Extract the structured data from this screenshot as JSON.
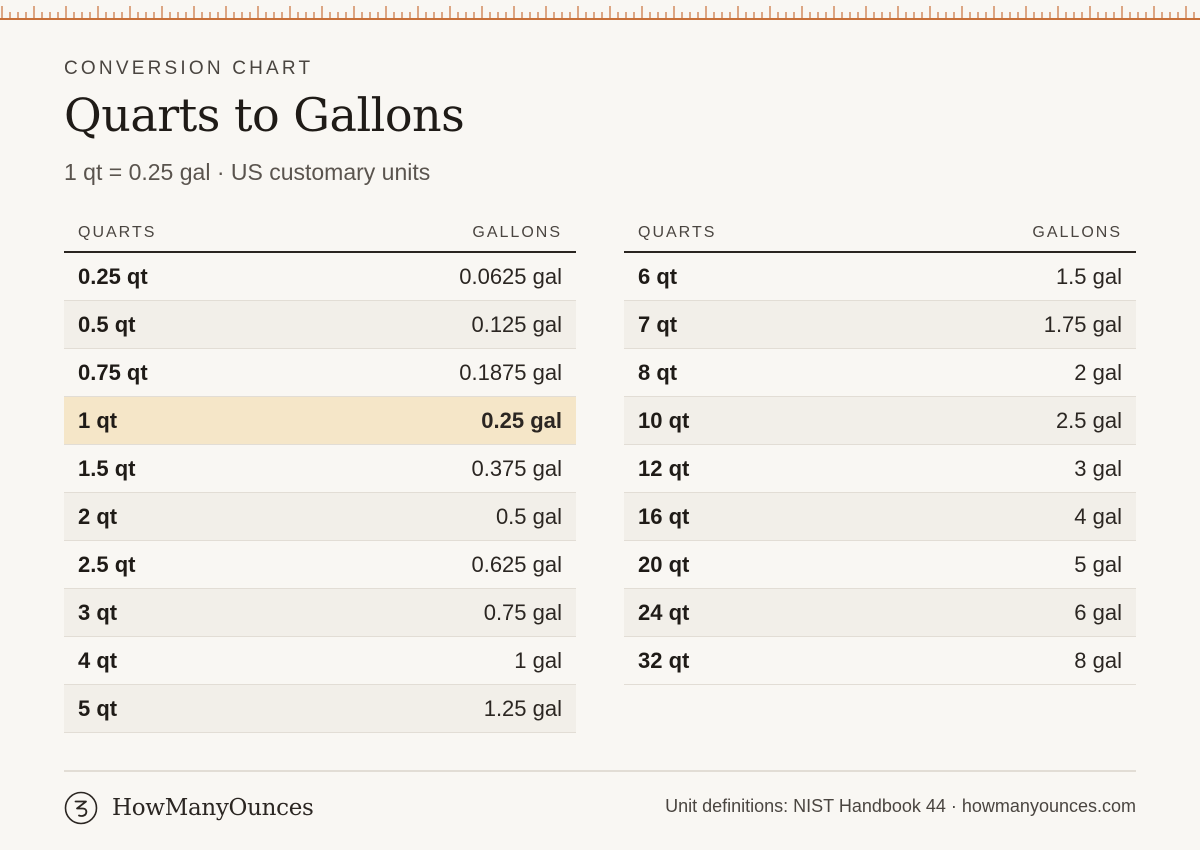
{
  "header": {
    "eyebrow": "CONVERSION CHART",
    "title": "Quarts to Gallons",
    "subtitle": "1 qt = 0.25 gal · US customary units"
  },
  "accent": {
    "ruler": "#c8703a",
    "highlight": "#f5e6c8"
  },
  "tables": {
    "left": {
      "col_quarts": "QUARTS",
      "col_gallons": "GALLONS",
      "rows": [
        {
          "qt": "0.25 qt",
          "gal": "0.0625 gal"
        },
        {
          "qt": "0.5 qt",
          "gal": "0.125 gal"
        },
        {
          "qt": "0.75 qt",
          "gal": "0.1875 gal"
        },
        {
          "qt": "1 qt",
          "gal": "0.25 gal"
        },
        {
          "qt": "1.5 qt",
          "gal": "0.375 gal"
        },
        {
          "qt": "2 qt",
          "gal": "0.5 gal"
        },
        {
          "qt": "2.5 qt",
          "gal": "0.625 gal"
        },
        {
          "qt": "3 qt",
          "gal": "0.75 gal"
        },
        {
          "qt": "4 qt",
          "gal": "1 gal"
        },
        {
          "qt": "5 qt",
          "gal": "1.25 gal"
        }
      ]
    },
    "right": {
      "col_quarts": "QUARTS",
      "col_gallons": "GALLONS",
      "rows": [
        {
          "qt": "6 qt",
          "gal": "1.5 gal"
        },
        {
          "qt": "7 qt",
          "gal": "1.75 gal"
        },
        {
          "qt": "8 qt",
          "gal": "2 gal"
        },
        {
          "qt": "10 qt",
          "gal": "2.5 gal"
        },
        {
          "qt": "12 qt",
          "gal": "3 gal"
        },
        {
          "qt": "16 qt",
          "gal": "4 gal"
        },
        {
          "qt": "20 qt",
          "gal": "5 gal"
        },
        {
          "qt": "24 qt",
          "gal": "6 gal"
        },
        {
          "qt": "32 qt",
          "gal": "8 gal"
        }
      ]
    }
  },
  "footer": {
    "brand_icon": "z-circle-logo-icon",
    "brand_name": "HowManyOunces",
    "source": "Unit definitions: NIST Handbook 44 · howmanyounces.com"
  }
}
